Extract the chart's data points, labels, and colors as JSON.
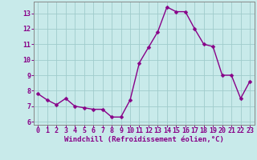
{
  "x": [
    0,
    1,
    2,
    3,
    4,
    5,
    6,
    7,
    8,
    9,
    10,
    11,
    12,
    13,
    14,
    15,
    16,
    17,
    18,
    19,
    20,
    21,
    22,
    23
  ],
  "y": [
    7.8,
    7.4,
    7.1,
    7.5,
    7.0,
    6.9,
    6.8,
    6.8,
    6.3,
    6.3,
    7.4,
    9.8,
    10.8,
    11.8,
    13.4,
    13.1,
    13.1,
    12.0,
    11.0,
    10.85,
    9.0,
    9.0,
    7.5,
    8.6
  ],
  "line_color": "#880088",
  "marker_color": "#880088",
  "bg_color": "#c8eaea",
  "grid_color": "#a0cccc",
  "xlabel": "Windchill (Refroidissement éolien,°C)",
  "xlabel_color": "#880088",
  "tick_color": "#880088",
  "spine_color": "#888888",
  "xlim": [
    -0.5,
    23.5
  ],
  "ylim": [
    5.8,
    13.75
  ],
  "yticks": [
    6,
    7,
    8,
    9,
    10,
    11,
    12,
    13
  ],
  "xticks": [
    0,
    1,
    2,
    3,
    4,
    5,
    6,
    7,
    8,
    9,
    10,
    11,
    12,
    13,
    14,
    15,
    16,
    17,
    18,
    19,
    20,
    21,
    22,
    23
  ],
  "marker_size": 2.5,
  "line_width": 1.0,
  "xlabel_fontsize": 6.5,
  "tick_fontsize": 6.0
}
